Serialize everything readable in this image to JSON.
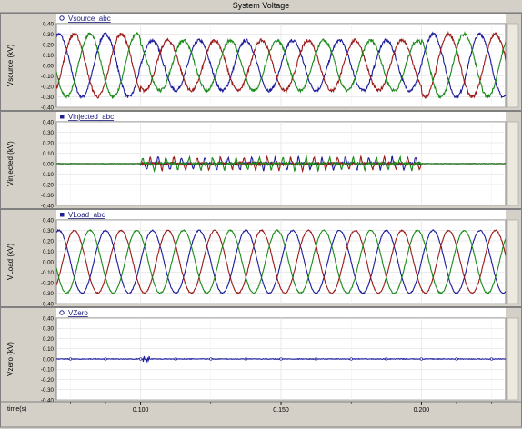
{
  "window": {
    "title": "System Voltage"
  },
  "panels": [
    {
      "legend": "Vsource_abc",
      "ylabel": "Vsource (kV)",
      "marker": "circle",
      "legend_color": "#1f1f8f"
    },
    {
      "legend": "Vinjected_abc",
      "ylabel": "Vinjected (kV)",
      "marker": "square",
      "legend_color": "#1f1f8f"
    },
    {
      "legend": "VLoad_abc",
      "ylabel": "VLoad (kV)",
      "marker": "square",
      "legend_color": "#1f1f8f"
    },
    {
      "legend": "VZero",
      "ylabel": "Vzero (kV)",
      "marker": "circle",
      "legend_color": "#1f1f8f"
    }
  ],
  "x_axis": {
    "label": "time(s)",
    "ticks": [
      "0.100",
      "0.150",
      "0.200"
    ]
  },
  "chart_data": [
    {
      "type": "line",
      "title": "Vsource_abc",
      "ylabel": "Vsource (kV)",
      "xlabel": "time(s)",
      "xlim": [
        0.07,
        0.23
      ],
      "ylim": [
        -0.4,
        0.4
      ],
      "yticks": [
        "0.40",
        "0.30",
        "0.20",
        "0.10",
        "0.00",
        "-0.10",
        "-0.20",
        "-0.30",
        "-0.40"
      ],
      "frequency_hz": 60,
      "series": [
        {
          "name": "Va",
          "amplitude": 0.3,
          "color": "#1a1a9a",
          "phase_deg": 0
        },
        {
          "name": "Vb",
          "amplitude": 0.3,
          "color": "#9a1a1a",
          "phase_deg": -120
        },
        {
          "name": "Vc",
          "amplitude": 0.3,
          "color": "#1a8a1a",
          "phase_deg": 120
        }
      ],
      "sag_window": [
        0.1,
        0.2
      ],
      "sag_amplitude": 0.24
    },
    {
      "type": "line",
      "title": "Vinjected_abc",
      "ylabel": "Vinjected (kV)",
      "xlabel": "time(s)",
      "xlim": [
        0.07,
        0.23
      ],
      "ylim": [
        -0.4,
        0.4
      ],
      "yticks": [
        "0.40",
        "0.30",
        "0.20",
        "0.10",
        "0.00",
        "-0.10",
        "-0.20",
        "-0.30",
        "-0.40"
      ],
      "active_window": [
        0.1,
        0.2
      ],
      "series": [
        {
          "name": "Va",
          "color": "#1a1a9a"
        },
        {
          "name": "Vb",
          "color": "#9a1a1a"
        },
        {
          "name": "Vc",
          "color": "#1a8a1a"
        }
      ]
    },
    {
      "type": "line",
      "title": "VLoad_abc",
      "ylabel": "VLoad (kV)",
      "xlabel": "time(s)",
      "xlim": [
        0.07,
        0.23
      ],
      "ylim": [
        -0.4,
        0.4
      ],
      "yticks": [
        "0.40",
        "0.30",
        "0.20",
        "0.10",
        "0.00",
        "-0.10",
        "-0.20",
        "-0.30",
        "-0.40"
      ],
      "frequency_hz": 60,
      "series": [
        {
          "name": "Va",
          "amplitude": 0.3,
          "color": "#1a1a9a",
          "phase_deg": 0
        },
        {
          "name": "Vb",
          "amplitude": 0.3,
          "color": "#9a1a1a",
          "phase_deg": -120
        },
        {
          "name": "Vc",
          "amplitude": 0.3,
          "color": "#1a8a1a",
          "phase_deg": 120
        }
      ]
    },
    {
      "type": "line",
      "title": "VZero",
      "ylabel": "Vzero (kV)",
      "xlabel": "time(s)",
      "xlim": [
        0.07,
        0.23
      ],
      "ylim": [
        -0.4,
        0.4
      ],
      "yticks": [
        "0.40",
        "0.30",
        "0.20",
        "0.10",
        "0.00",
        "-0.10",
        "-0.20",
        "-0.30",
        "-0.40"
      ],
      "series": [
        {
          "name": "VZero",
          "value": 0.0,
          "color": "#1a1a9a",
          "transient_at": 0.102
        }
      ]
    }
  ]
}
